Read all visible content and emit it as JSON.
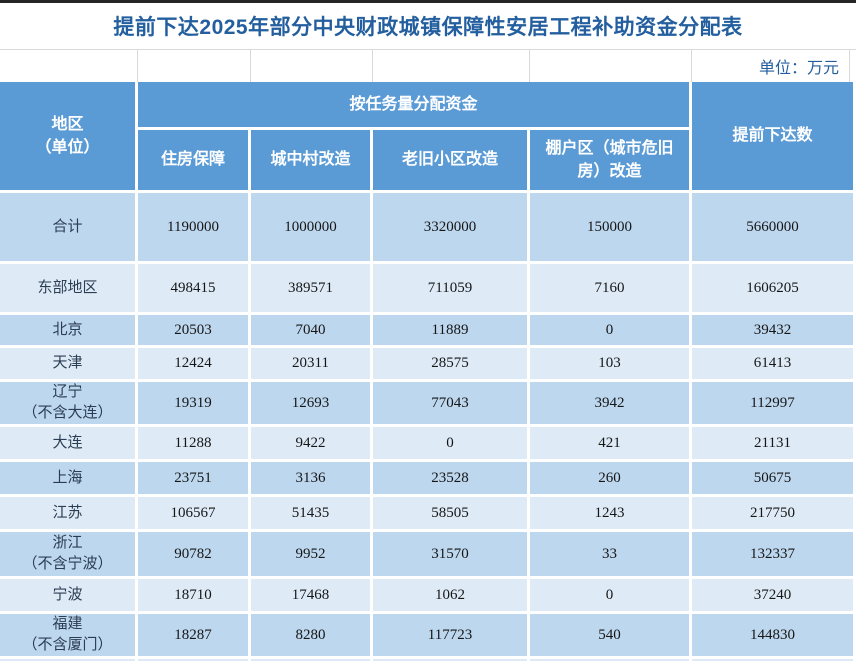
{
  "title": "提前下达2025年部分中央财政城镇保障性安居工程补助资金分配表",
  "unit_label": "单位：万元",
  "colors": {
    "header_bg": "#5B9BD5",
    "row_alt_dark": "#BDD7EE",
    "row_alt_light": "#DEEBF7",
    "title_text": "#235E9E"
  },
  "table": {
    "header": {
      "region": "地区\n（单位）",
      "group": "按任务量分配资金",
      "sub_columns": [
        "住房保障",
        "城中村改造",
        "老旧小区改造",
        "棚户区（城市危旧房）改造"
      ],
      "total": "提前下达数"
    },
    "rows": [
      {
        "region": "合计",
        "values": [
          "1190000",
          "1000000",
          "3320000",
          "150000",
          "5660000"
        ]
      },
      {
        "region": "东部地区",
        "values": [
          "498415",
          "389571",
          "711059",
          "7160",
          "1606205"
        ]
      },
      {
        "region": "北京",
        "values": [
          "20503",
          "7040",
          "11889",
          "0",
          "39432"
        ]
      },
      {
        "region": "天津",
        "values": [
          "12424",
          "20311",
          "28575",
          "103",
          "61413"
        ]
      },
      {
        "region": "辽宁\n（不含大连）",
        "values": [
          "19319",
          "12693",
          "77043",
          "3942",
          "112997"
        ]
      },
      {
        "region": "大连",
        "values": [
          "11288",
          "9422",
          "0",
          "421",
          "21131"
        ]
      },
      {
        "region": "上海",
        "values": [
          "23751",
          "3136",
          "23528",
          "260",
          "50675"
        ]
      },
      {
        "region": "江苏",
        "values": [
          "106567",
          "51435",
          "58505",
          "1243",
          "217750"
        ]
      },
      {
        "region": "浙江\n（不含宁波）",
        "values": [
          "90782",
          "9952",
          "31570",
          "33",
          "132337"
        ]
      },
      {
        "region": "宁波",
        "values": [
          "18710",
          "17468",
          "1062",
          "0",
          "37240"
        ]
      },
      {
        "region": "福建\n（不含厦门）",
        "values": [
          "18287",
          "8280",
          "117723",
          "540",
          "144830"
        ]
      }
    ]
  }
}
